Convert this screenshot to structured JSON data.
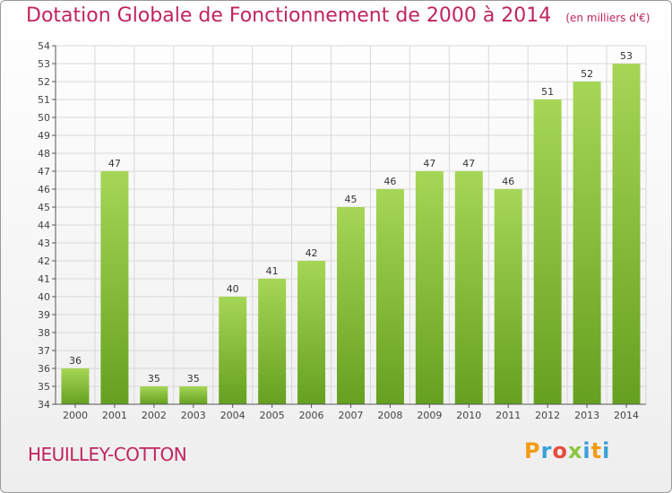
{
  "header": {
    "title": "Dotation Globale de Fonctionnement de 2000 à 2014",
    "subtitle": "(en milliers d'€)"
  },
  "footer": {
    "town": "HEUILLEY-COTTON",
    "logo": "Proxiti"
  },
  "colors": {
    "title": "#c0245f",
    "bar_light": "#9fd04e",
    "bar_dark": "#6ea526",
    "grid": "#d8d8d8",
    "axis": "#555555"
  },
  "chart_data": {
    "type": "bar",
    "title": "Dotation Globale de Fonctionnement de 2000 à 2014",
    "xlabel": "",
    "ylabel": "",
    "categories": [
      "2000",
      "2001",
      "2002",
      "2003",
      "2004",
      "2005",
      "2006",
      "2007",
      "2008",
      "2009",
      "2010",
      "2011",
      "2012",
      "2013",
      "2014"
    ],
    "values": [
      36,
      47,
      35,
      35,
      40,
      41,
      42,
      45,
      46,
      47,
      47,
      46,
      51,
      52,
      53
    ],
    "ylim": [
      34,
      54
    ],
    "yticks": [
      34,
      35,
      36,
      37,
      38,
      39,
      40,
      41,
      42,
      43,
      44,
      45,
      46,
      47,
      48,
      49,
      50,
      51,
      52,
      53,
      54
    ],
    "grid": true,
    "data_labels": true
  }
}
